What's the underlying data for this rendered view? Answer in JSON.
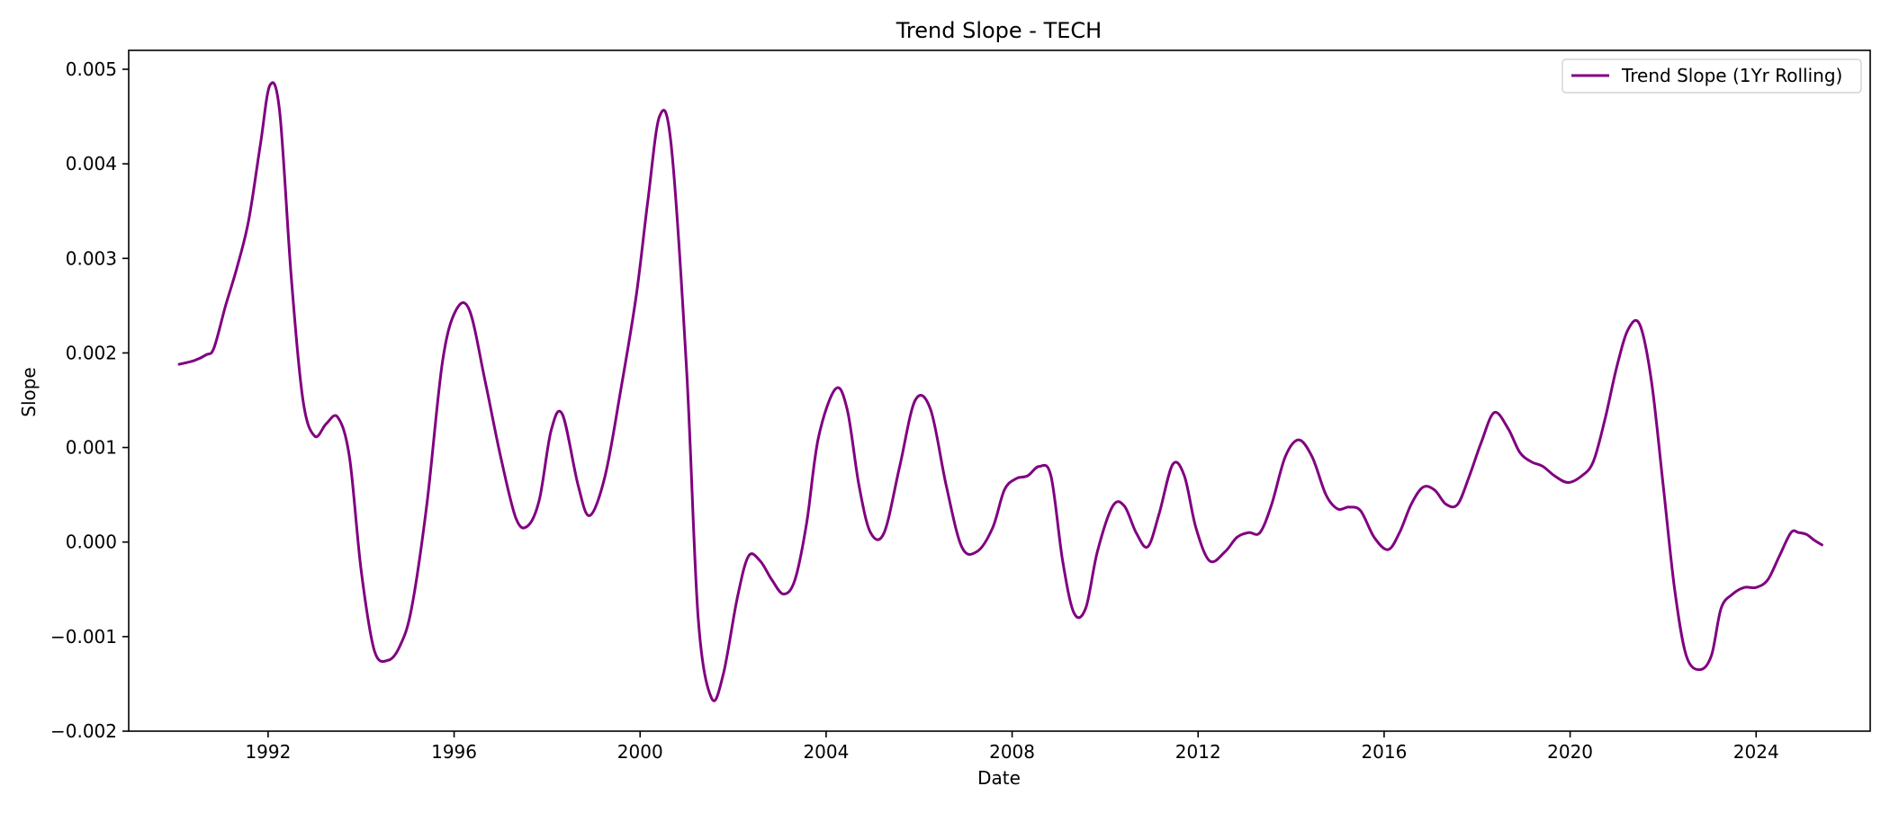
{
  "chart_data": {
    "type": "line",
    "title": "Trend Slope - TECH",
    "xlabel": "Date",
    "ylabel": "Slope",
    "xlim": [
      "1989-01-01",
      "2026-06-15"
    ],
    "ylim": [
      -0.002,
      0.0052
    ],
    "x_ticks": [
      "1992",
      "1996",
      "2000",
      "2004",
      "2008",
      "2012",
      "2016",
      "2020",
      "2024"
    ],
    "y_ticks": [
      "−0.002",
      "−0.001",
      "0.000",
      "0.001",
      "0.002",
      "0.003",
      "0.004",
      "0.005"
    ],
    "y_tick_values": [
      -0.002,
      -0.001,
      0.0,
      0.001,
      0.002,
      0.003,
      0.004,
      0.005
    ],
    "grid": false,
    "legend_position": "upper right",
    "series": [
      {
        "name": "Trend Slope (1Yr Rolling)",
        "color": "#800080",
        "x": [
          "1990-02-01",
          "1990-06-01",
          "1990-09-01",
          "1990-11-01",
          "1991-02-01",
          "1991-05-01",
          "1991-08-01",
          "1991-11-01",
          "1992-01-15",
          "1992-04-01",
          "1992-07-01",
          "1992-10-01",
          "1993-01-01",
          "1993-04-01",
          "1993-07-01",
          "1993-10-01",
          "1994-01-01",
          "1994-04-15",
          "1994-08-01",
          "1994-11-01",
          "1995-02-01",
          "1995-06-01",
          "1995-10-01",
          "1996-01-15",
          "1996-05-01",
          "1996-09-01",
          "1997-01-01",
          "1997-05-01",
          "1997-08-01",
          "1997-11-01",
          "1998-02-01",
          "1998-05-01",
          "1998-09-01",
          "1998-12-01",
          "1999-04-01",
          "1999-08-01",
          "1999-12-01",
          "2000-03-01",
          "2000-06-01",
          "2000-09-01",
          "2001-01-01",
          "2001-04-01",
          "2001-07-15",
          "2001-10-15",
          "2002-02-01",
          "2002-05-01",
          "2002-08-01",
          "2002-11-01",
          "2003-02-01",
          "2003-05-01",
          "2003-08-01",
          "2003-11-01",
          "2004-03-15",
          "2004-06-15",
          "2004-09-15",
          "2004-12-15",
          "2005-04-01",
          "2005-08-01",
          "2005-12-01",
          "2006-04-01",
          "2006-08-01",
          "2006-12-01",
          "2007-04-01",
          "2007-08-01",
          "2007-11-01",
          "2008-02-01",
          "2008-05-01",
          "2008-08-01",
          "2008-11-01",
          "2009-02-01",
          "2009-05-01",
          "2009-08-01",
          "2009-11-01",
          "2010-03-01",
          "2010-06-01",
          "2010-09-01",
          "2010-12-01",
          "2011-03-01",
          "2011-06-15",
          "2011-09-15",
          "2011-12-15",
          "2012-04-01",
          "2012-08-01",
          "2012-11-01",
          "2013-02-01",
          "2013-05-01",
          "2013-08-01",
          "2013-11-15",
          "2014-03-01",
          "2014-06-15",
          "2014-10-01",
          "2015-01-01",
          "2015-04-01",
          "2015-07-01",
          "2015-10-15",
          "2016-02-01",
          "2016-05-01",
          "2016-08-01",
          "2016-11-01",
          "2017-02-01",
          "2017-05-01",
          "2017-08-01",
          "2017-11-01",
          "2018-02-01",
          "2018-05-15",
          "2018-09-01",
          "2018-12-01",
          "2019-03-01",
          "2019-06-01",
          "2019-09-01",
          "2019-12-15",
          "2020-04-01",
          "2020-07-01",
          "2020-10-01",
          "2021-01-01",
          "2021-04-01",
          "2021-07-01",
          "2021-10-01",
          "2022-01-01",
          "2022-04-01",
          "2022-07-01",
          "2022-10-15",
          "2023-01-15",
          "2023-04-01",
          "2023-07-01",
          "2023-10-01",
          "2024-01-01",
          "2024-04-01",
          "2024-07-01",
          "2024-10-01",
          "2024-12-01",
          "2025-02-01",
          "2025-04-01",
          "2025-06-01"
        ],
        "y": [
          0.00188,
          0.00192,
          0.00198,
          0.00205,
          0.0025,
          0.0029,
          0.0034,
          0.0042,
          0.00483,
          0.00455,
          0.0028,
          0.0015,
          0.00112,
          0.00125,
          0.00132,
          0.0009,
          -0.0003,
          -0.00115,
          -0.00125,
          -0.0011,
          -0.0007,
          0.0004,
          0.0019,
          0.00245,
          0.00245,
          0.0017,
          0.0009,
          0.00025,
          0.00017,
          0.00045,
          0.00118,
          0.00135,
          0.0006,
          0.00028,
          0.0007,
          0.0016,
          0.0026,
          0.0036,
          0.0045,
          0.0042,
          0.0018,
          -0.0008,
          -0.00165,
          -0.0014,
          -0.0006,
          -0.00015,
          -0.0002,
          -0.0004,
          -0.00055,
          -0.0004,
          0.0002,
          0.0011,
          0.00162,
          0.0014,
          0.0006,
          0.0001,
          0.0001,
          0.0008,
          0.0015,
          0.0014,
          0.0006,
          -5e-05,
          -0.0001,
          0.00015,
          0.00055,
          0.00067,
          0.0007,
          0.0008,
          0.0007,
          -0.0002,
          -0.00075,
          -0.0007,
          -0.0001,
          0.00038,
          0.00038,
          0.0001,
          -5e-05,
          0.0003,
          0.00082,
          0.0007,
          0.00015,
          -0.0002,
          -0.0001,
          5e-05,
          0.0001,
          0.0001,
          0.0004,
          0.0009,
          0.00108,
          0.0009,
          0.0005,
          0.00035,
          0.00037,
          0.00033,
          5e-05,
          -8e-05,
          0.0001,
          0.0004,
          0.00058,
          0.00055,
          0.0004,
          0.0004,
          0.0007,
          0.00105,
          0.00137,
          0.0012,
          0.00095,
          0.00085,
          0.0008,
          0.0007,
          0.00063,
          0.0007,
          0.00085,
          0.0013,
          0.00185,
          0.00225,
          0.0023,
          0.0017,
          0.0006,
          -0.0005,
          -0.0012,
          -0.00135,
          -0.0012,
          -0.0007,
          -0.00055,
          -0.00048,
          -0.00048,
          -0.0004,
          -0.00015,
          0.0001,
          0.0001,
          8e-05,
          2e-05,
          -3e-05
        ]
      }
    ]
  }
}
